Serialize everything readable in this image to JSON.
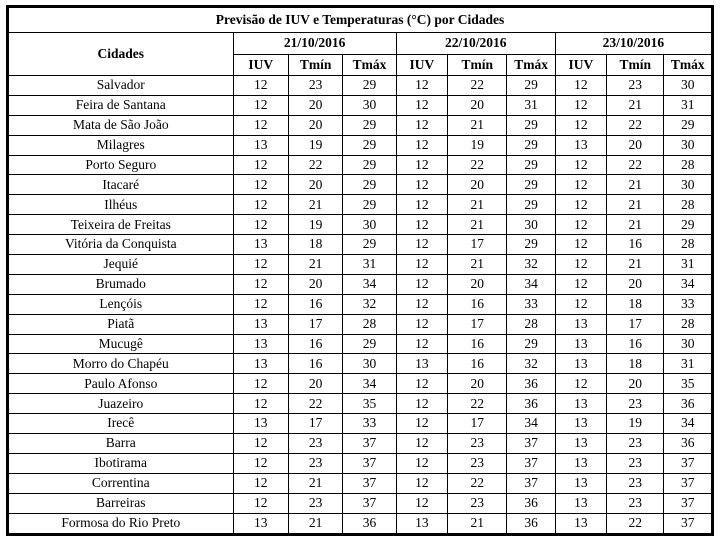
{
  "colors": {
    "border": "#000000",
    "text": "#000000",
    "background": "#ffffff"
  },
  "table": {
    "title": "Previsão de IUV e Temperaturas (°C) por Cidades",
    "cities_header": "Cidades",
    "dates": [
      "21/10/2016",
      "22/10/2016",
      "23/10/2016"
    ],
    "sub_headers": [
      "IUV",
      "Tmín",
      "Tmáx"
    ],
    "rows": [
      {
        "city": "Salvador",
        "values": [
          12,
          23,
          29,
          12,
          22,
          29,
          12,
          23,
          30
        ]
      },
      {
        "city": "Feira de Santana",
        "values": [
          12,
          20,
          30,
          12,
          20,
          31,
          12,
          21,
          31
        ]
      },
      {
        "city": "Mata de São João",
        "values": [
          12,
          20,
          29,
          12,
          21,
          29,
          12,
          22,
          29
        ]
      },
      {
        "city": "Milagres",
        "values": [
          13,
          19,
          29,
          12,
          19,
          29,
          13,
          20,
          30
        ]
      },
      {
        "city": "Porto Seguro",
        "values": [
          12,
          22,
          29,
          12,
          22,
          29,
          12,
          22,
          28
        ]
      },
      {
        "city": "Itacaré",
        "values": [
          12,
          20,
          29,
          12,
          20,
          29,
          12,
          21,
          30
        ]
      },
      {
        "city": "Ilhéus",
        "values": [
          12,
          21,
          29,
          12,
          21,
          29,
          12,
          21,
          28
        ]
      },
      {
        "city": "Teixeira de Freitas",
        "values": [
          12,
          19,
          30,
          12,
          21,
          30,
          12,
          21,
          29
        ]
      },
      {
        "city": "Vitória da Conquista",
        "values": [
          13,
          18,
          29,
          12,
          17,
          29,
          12,
          16,
          28
        ]
      },
      {
        "city": "Jequié",
        "values": [
          12,
          21,
          31,
          12,
          21,
          32,
          12,
          21,
          31
        ]
      },
      {
        "city": "Brumado",
        "values": [
          12,
          20,
          34,
          12,
          20,
          34,
          12,
          20,
          34
        ]
      },
      {
        "city": "Lençóis",
        "values": [
          12,
          16,
          32,
          12,
          16,
          33,
          12,
          18,
          33
        ]
      },
      {
        "city": "Piatã",
        "values": [
          13,
          17,
          28,
          12,
          17,
          28,
          13,
          17,
          28
        ]
      },
      {
        "city": "Mucugê",
        "values": [
          13,
          16,
          29,
          12,
          16,
          29,
          13,
          16,
          30
        ]
      },
      {
        "city": "Morro do Chapéu",
        "values": [
          13,
          16,
          30,
          13,
          16,
          32,
          13,
          18,
          31
        ]
      },
      {
        "city": "Paulo Afonso",
        "values": [
          12,
          20,
          34,
          12,
          20,
          36,
          12,
          20,
          35
        ]
      },
      {
        "city": "Juazeiro",
        "values": [
          12,
          22,
          35,
          12,
          22,
          36,
          13,
          23,
          36
        ]
      },
      {
        "city": "Irecê",
        "values": [
          13,
          17,
          33,
          12,
          17,
          34,
          13,
          19,
          34
        ]
      },
      {
        "city": "Barra",
        "values": [
          12,
          23,
          37,
          12,
          23,
          37,
          13,
          23,
          36
        ]
      },
      {
        "city": "Ibotirama",
        "values": [
          12,
          23,
          37,
          12,
          23,
          37,
          13,
          23,
          37
        ]
      },
      {
        "city": "Correntina",
        "values": [
          12,
          21,
          37,
          12,
          22,
          37,
          13,
          23,
          37
        ]
      },
      {
        "city": "Barreiras",
        "values": [
          12,
          23,
          37,
          12,
          23,
          36,
          13,
          23,
          37
        ]
      },
      {
        "city": "Formosa do Rio Preto",
        "values": [
          13,
          21,
          36,
          13,
          21,
          36,
          13,
          22,
          37
        ]
      }
    ]
  }
}
